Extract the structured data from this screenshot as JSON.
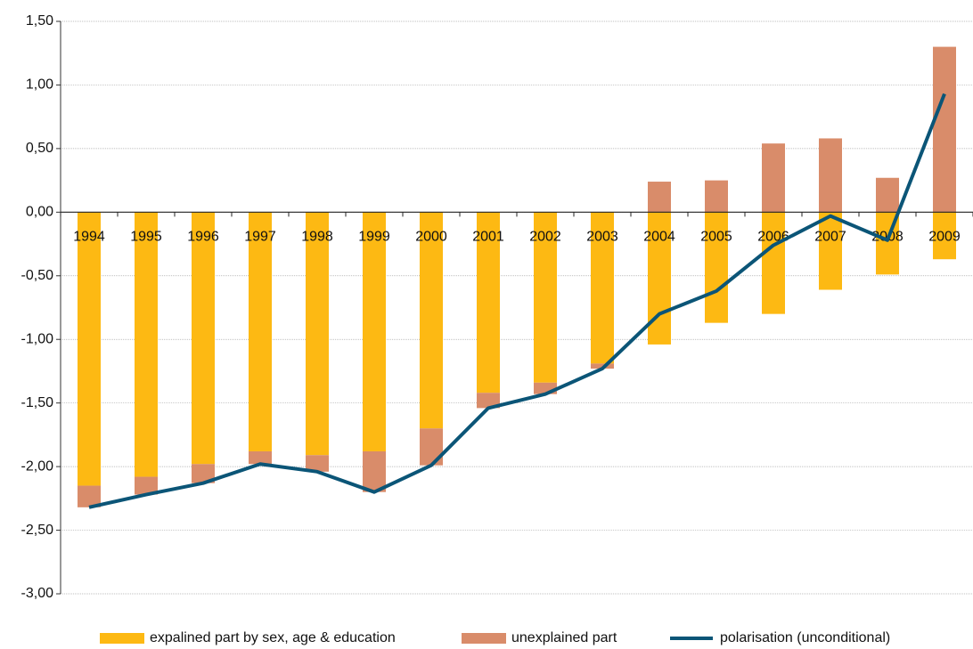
{
  "chart_data": {
    "type": "bar_line",
    "categories": [
      "1994",
      "1995",
      "1996",
      "1997",
      "1998",
      "1999",
      "2000",
      "2001",
      "2002",
      "2003",
      "2004",
      "2005",
      "2006",
      "2007",
      "2008",
      "2009"
    ],
    "series": [
      {
        "name": "expalined part by sex, age & education",
        "type": "bar",
        "color": "#FDB913",
        "values": [
          -2.15,
          -2.08,
          -1.98,
          -1.88,
          -1.91,
          -1.88,
          -1.7,
          -1.42,
          -1.34,
          -1.19,
          -1.04,
          -0.87,
          -0.8,
          -0.61,
          -0.49,
          -0.37
        ]
      },
      {
        "name": "unexplained part",
        "type": "bar",
        "color": "#D98C6A",
        "values": [
          -0.17,
          -0.14,
          -0.15,
          -0.1,
          -0.13,
          -0.32,
          -0.29,
          -0.12,
          -0.09,
          -0.04,
          0.24,
          0.25,
          0.54,
          0.58,
          0.27,
          1.3
        ]
      },
      {
        "name": "polarisation (unconditional)",
        "type": "line",
        "color": "#0B5577",
        "values": [
          -2.32,
          -2.22,
          -2.13,
          -1.98,
          -2.04,
          -2.2,
          -1.99,
          -1.54,
          -1.43,
          -1.23,
          -0.8,
          -0.62,
          -0.26,
          -0.03,
          -0.22,
          0.93
        ]
      }
    ],
    "ylim": [
      -3,
      1.5
    ],
    "yticks": [
      {
        "value": -3,
        "label": "-3,00"
      },
      {
        "value": -2.5,
        "label": "-2,50"
      },
      {
        "value": -2,
        "label": "-2,00"
      },
      {
        "value": -1.5,
        "label": "-1,50"
      },
      {
        "value": -1,
        "label": "-1,00"
      },
      {
        "value": -0.5,
        "label": "-0,50"
      },
      {
        "value": 0,
        "label": "0,00"
      },
      {
        "value": 0.5,
        "label": "0,50"
      },
      {
        "value": 1,
        "label": "1,00"
      },
      {
        "value": 1.5,
        "label": "1,50"
      }
    ],
    "grid": true,
    "legend": "bottom"
  }
}
